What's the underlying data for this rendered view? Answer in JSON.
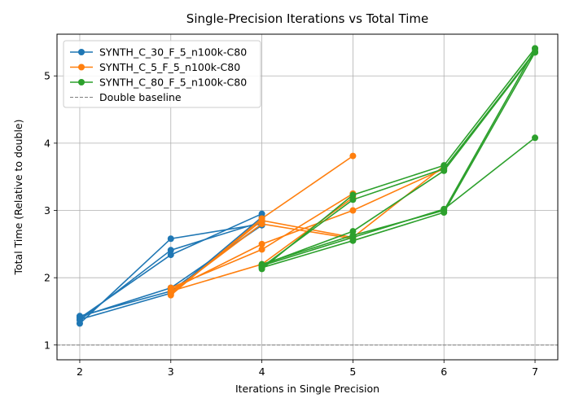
{
  "chart_data": {
    "type": "line",
    "title": "Single-Precision Iterations vs Total Time",
    "xlabel": "Iterations in Single Precision",
    "ylabel": "Total Time (Relative to double)",
    "xlim": [
      1.75,
      7.25
    ],
    "ylim": [
      0.78,
      5.62
    ],
    "xticks": [
      2,
      3,
      4,
      5,
      6,
      7
    ],
    "yticks": [
      1,
      2,
      3,
      4,
      5
    ],
    "grid": true,
    "legend_position": "top-left",
    "baseline": {
      "name": "Double baseline",
      "y": 1,
      "color": "#808080",
      "style": "dashed"
    },
    "series": [
      {
        "name": "SYNTH_C_30_F_5_n100k-C80",
        "color": "#1f77b4",
        "segments": [
          [
            [
              2,
              1.32
            ],
            [
              3,
              2.58
            ],
            [
              4,
              2.8
            ]
          ],
          [
            [
              2,
              1.37
            ],
            [
              3,
              2.41
            ],
            [
              4,
              2.83
            ]
          ],
          [
            [
              2,
              1.4
            ],
            [
              3,
              2.34
            ],
            [
              4,
              2.95
            ]
          ],
          [
            [
              2,
              1.43
            ],
            [
              3,
              1.8
            ],
            [
              4,
              2.8
            ]
          ],
          [
            [
              2,
              1.42
            ],
            [
              3,
              1.85
            ],
            [
              4,
              2.78
            ]
          ],
          [
            [
              2,
              1.38
            ],
            [
              3,
              1.77
            ],
            [
              4,
              2.9
            ]
          ]
        ]
      },
      {
        "name": "SYNTH_C_5_F_5_n100k-C80",
        "color": "#ff7f0e",
        "segments": [
          [
            [
              3,
              1.74
            ],
            [
              4,
              2.88
            ],
            [
              5,
              3.81
            ]
          ],
          [
            [
              3,
              1.78
            ],
            [
              4,
              2.8
            ],
            [
              5,
              2.58
            ]
          ],
          [
            [
              3,
              1.85
            ],
            [
              4,
              2.42
            ],
            [
              5,
              3.25
            ]
          ],
          [
            [
              3,
              1.8
            ],
            [
              4,
              2.2
            ],
            [
              5,
              3.19
            ]
          ],
          [
            [
              3,
              1.76
            ],
            [
              4,
              2.85
            ],
            [
              5,
              2.6
            ],
            [
              6,
              3.66
            ]
          ],
          [
            [
              3,
              1.82
            ],
            [
              4,
              2.5
            ],
            [
              5,
              3.0
            ],
            [
              6,
              3.62
            ]
          ]
        ]
      },
      {
        "name": "SYNTH_C_80_F_5_n100k-C80",
        "color": "#2ca02c",
        "segments": [
          [
            [
              4,
              2.13
            ],
            [
              5,
              3.23
            ],
            [
              6,
              3.67
            ],
            [
              7,
              5.41
            ]
          ],
          [
            [
              4,
              2.16
            ],
            [
              5,
              3.16
            ],
            [
              6,
              3.62
            ],
            [
              7,
              5.36
            ]
          ],
          [
            [
              4,
              2.19
            ],
            [
              5,
              2.69
            ],
            [
              6,
              3.59
            ],
            [
              7,
              5.35
            ]
          ],
          [
            [
              4,
              2.2
            ],
            [
              5,
              2.63
            ],
            [
              6,
              3.0
            ],
            [
              7,
              5.4
            ]
          ],
          [
            [
              4,
              2.15
            ],
            [
              5,
              2.55
            ],
            [
              6,
              2.97
            ],
            [
              7,
              5.35
            ]
          ],
          [
            [
              4,
              2.18
            ],
            [
              5,
              2.6
            ],
            [
              6,
              3.02
            ],
            [
              7,
              4.08
            ]
          ]
        ]
      }
    ]
  }
}
